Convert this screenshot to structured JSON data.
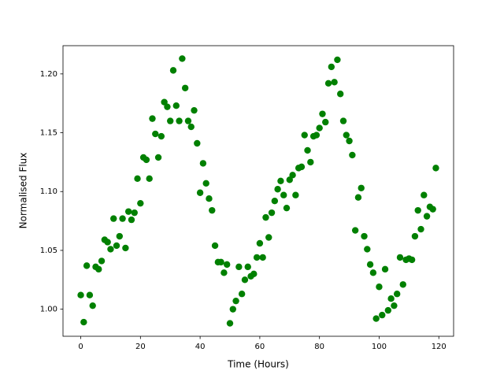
{
  "chart_data": {
    "type": "scatter",
    "x_label": "Time (Hours)",
    "y_label": "Normalised Flux",
    "x": [
      0,
      1,
      2,
      3,
      4,
      5,
      6,
      7,
      8,
      9,
      10,
      11,
      12,
      13,
      14,
      15,
      16,
      17,
      18,
      19,
      20,
      21,
      22,
      23,
      24,
      25,
      26,
      27,
      28,
      29,
      30,
      31,
      32,
      33,
      34,
      35,
      36,
      37,
      38,
      39,
      40,
      41,
      42,
      43,
      44,
      45,
      46,
      47,
      48,
      49,
      50,
      51,
      52,
      53,
      54,
      55,
      56,
      57,
      58,
      59,
      60,
      61,
      62,
      63,
      64,
      65,
      66,
      67,
      68,
      69,
      70,
      71,
      72,
      73,
      74,
      75,
      76,
      77,
      78,
      79,
      80,
      81,
      82,
      83,
      84,
      85,
      86,
      87,
      88,
      89,
      90,
      91,
      92,
      93,
      94,
      95,
      96,
      97,
      98,
      99,
      100,
      101,
      102,
      103,
      104,
      105,
      106,
      107,
      108,
      109,
      110,
      111,
      112,
      113,
      114,
      115,
      116,
      117,
      118,
      119
    ],
    "values": [
      1.012,
      0.989,
      1.037,
      1.012,
      1.003,
      1.036,
      1.034,
      1.041,
      1.059,
      1.057,
      1.051,
      1.077,
      1.054,
      1.062,
      1.077,
      1.052,
      1.083,
      1.076,
      1.082,
      1.111,
      1.09,
      1.129,
      1.127,
      1.111,
      1.162,
      1.149,
      1.129,
      1.147,
      1.176,
      1.172,
      1.16,
      1.203,
      1.173,
      1.16,
      1.213,
      1.188,
      1.16,
      1.155,
      1.169,
      1.141,
      1.099,
      1.124,
      1.107,
      1.094,
      1.084,
      1.054,
      1.04,
      1.04,
      1.031,
      1.038,
      0.988,
      1.0,
      1.007,
      1.036,
      1.013,
      1.025,
      1.036,
      1.028,
      1.03,
      1.044,
      1.056,
      1.044,
      1.078,
      1.061,
      1.082,
      1.092,
      1.102,
      1.109,
      1.097,
      1.086,
      1.11,
      1.114,
      1.097,
      1.12,
      1.121,
      1.148,
      1.135,
      1.125,
      1.147,
      1.148,
      1.154,
      1.166,
      1.159,
      1.192,
      1.206,
      1.193,
      1.212,
      1.183,
      1.16,
      1.148,
      1.143,
      1.131,
      1.067,
      1.095,
      1.103,
      1.062,
      1.051,
      1.038,
      1.031,
      0.992,
      1.019,
      0.995,
      1.034,
      0.999,
      1.009,
      1.003,
      1.013,
      1.044,
      1.021,
      1.042,
      1.043,
      1.042,
      1.062,
      1.084,
      1.068,
      1.097,
      1.079,
      1.087,
      1.085,
      1.12
    ],
    "color": "#008000",
    "xlim": [
      -5.95,
      124.95
    ],
    "ylim": [
      0.977,
      1.224
    ],
    "xticks": [
      0,
      20,
      40,
      60,
      80,
      100,
      120
    ],
    "yticks": [
      {
        "value": 1.0,
        "label": "1.00"
      },
      1.05,
      {
        "value": 1.1,
        "label": "1.10"
      },
      1.15,
      {
        "value": 1.2,
        "label": "1.20"
      }
    ],
    "grid": false
  }
}
